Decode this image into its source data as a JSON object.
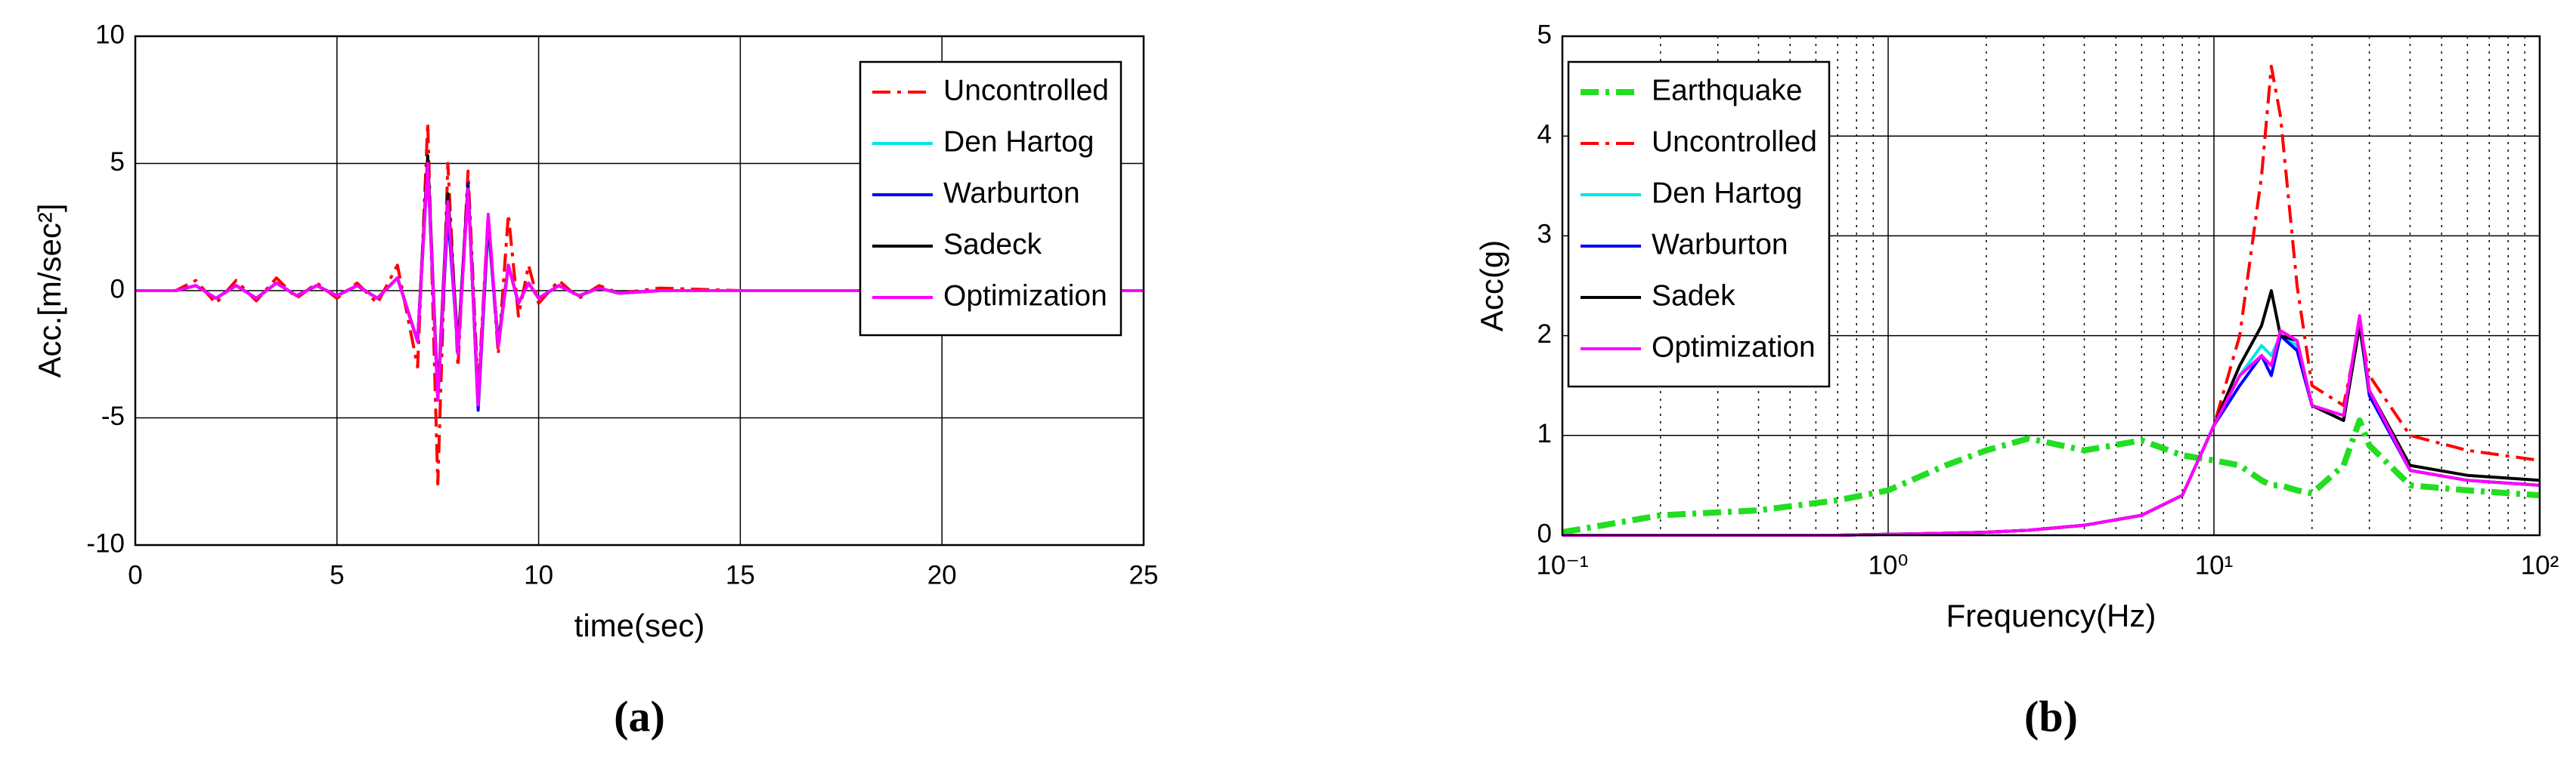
{
  "chart_data": [
    {
      "type": "line",
      "xlabel": "time(sec)",
      "ylabel": "Acc.[m/sec²]",
      "caption": "(a)",
      "xlim": [
        0,
        25
      ],
      "ylim": [
        -10,
        10
      ],
      "xticks": [
        0,
        5,
        10,
        15,
        20,
        25
      ],
      "yticks": [
        -10,
        -5,
        0,
        5,
        10
      ],
      "grid": true,
      "legend": "top-right",
      "x": [
        0,
        1,
        1.5,
        2,
        2.5,
        3,
        3.5,
        4,
        4.5,
        5,
        5.5,
        6,
        6.5,
        7,
        7.25,
        7.5,
        7.75,
        8,
        8.25,
        8.5,
        8.75,
        9,
        9.25,
        9.5,
        9.75,
        10,
        10.5,
        11,
        11.5,
        12,
        13,
        15,
        20,
        25
      ],
      "series": [
        {
          "name": "Uncontrolled",
          "color": "#ff0000",
          "style": "dashdot",
          "values": [
            0,
            0,
            0.4,
            -0.5,
            0.4,
            -0.4,
            0.5,
            -0.3,
            0.3,
            -0.3,
            0.3,
            -0.5,
            1,
            -3,
            6.6,
            -7.6,
            5,
            -3,
            4.7,
            -4,
            3,
            -2.5,
            3,
            -1,
            1,
            -0.5,
            0.4,
            -0.3,
            0.2,
            -0.1,
            0.1,
            0,
            0,
            0
          ]
        },
        {
          "name": "Den Hartog",
          "color": "#00e5ee",
          "style": "solid",
          "values": [
            0,
            0,
            0.2,
            -0.3,
            0.2,
            -0.3,
            0.3,
            -0.2,
            0.2,
            -0.2,
            0.2,
            -0.3,
            0.5,
            -2,
            4.8,
            -4.2,
            3.2,
            -2.5,
            4,
            -4.5,
            2.5,
            -2,
            1,
            -0.5,
            0.3,
            -0.3,
            0.2,
            -0.2,
            0.1,
            -0.1,
            0,
            0,
            0,
            0
          ]
        },
        {
          "name": "Warburton",
          "color": "#0000ff",
          "style": "solid",
          "values": [
            0,
            0,
            0.2,
            -0.3,
            0.2,
            -0.3,
            0.3,
            -0.2,
            0.2,
            -0.2,
            0.2,
            -0.3,
            0.5,
            -2,
            5,
            -4.3,
            3,
            -2.3,
            4.2,
            -4.7,
            2.7,
            -2.2,
            1,
            -0.5,
            0.3,
            -0.3,
            0.2,
            -0.2,
            0.1,
            -0.1,
            0,
            0,
            0,
            0
          ]
        },
        {
          "name": "Sadeck",
          "color": "#000000",
          "style": "solid",
          "values": [
            0,
            0,
            0.2,
            -0.3,
            0.2,
            -0.3,
            0.3,
            -0.2,
            0.2,
            -0.2,
            0.2,
            -0.3,
            0.5,
            -2,
            5.3,
            -4.2,
            3.8,
            -2.2,
            4.1,
            -4.4,
            2.8,
            -2.1,
            1,
            -0.5,
            0.3,
            -0.3,
            0.2,
            -0.2,
            0.1,
            -0.1,
            0,
            0,
            0,
            0
          ]
        },
        {
          "name": "Optimization",
          "color": "#ff00ff",
          "style": "solid",
          "values": [
            0,
            0,
            0.2,
            -0.3,
            0.2,
            -0.3,
            0.3,
            -0.2,
            0.2,
            -0.2,
            0.2,
            -0.3,
            0.5,
            -2,
            5,
            -4.3,
            3.5,
            -2.5,
            4,
            -4.5,
            3,
            -2.2,
            1,
            -0.5,
            0.3,
            -0.3,
            0.2,
            -0.2,
            0.1,
            -0.1,
            0,
            0,
            0,
            0
          ]
        }
      ]
    },
    {
      "type": "line",
      "xlabel": "Frequency(Hz)",
      "ylabel": "Acc(g)",
      "caption": "(b)",
      "xscale": "log",
      "xlim": [
        0.1,
        100
      ],
      "ylim": [
        0,
        5
      ],
      "xticks": [
        {
          "value": 0.1,
          "label": "10⁻¹"
        },
        {
          "value": 1,
          "label": "10⁰"
        },
        {
          "value": 10,
          "label": "10¹"
        },
        {
          "value": 100,
          "label": "10²"
        }
      ],
      "yticks": [
        0,
        1,
        2,
        3,
        4,
        5
      ],
      "grid": true,
      "minor_grid": true,
      "legend": "top-left",
      "x": [
        0.1,
        0.2,
        0.4,
        0.7,
        1,
        1.5,
        2,
        2.7,
        4,
        6,
        8,
        10,
        12,
        14,
        15,
        16,
        18,
        20,
        25,
        28,
        30,
        40,
        60,
        100
      ],
      "series": [
        {
          "name": "Earthquake",
          "color": "#22dd22",
          "style": "dashdot",
          "linewidth": 8,
          "values": [
            0.03,
            0.2,
            0.25,
            0.35,
            0.45,
            0.7,
            0.85,
            0.97,
            0.85,
            0.95,
            0.8,
            0.75,
            0.7,
            0.55,
            0.5,
            0.5,
            0.45,
            0.42,
            0.7,
            1.15,
            0.9,
            0.5,
            0.45,
            0.4
          ]
        },
        {
          "name": "Uncontrolled",
          "color": "#ff0000",
          "style": "dashdot",
          "values": [
            0,
            0,
            0,
            0,
            0.01,
            0.02,
            0.03,
            0.05,
            0.1,
            0.2,
            0.4,
            1.1,
            2.0,
            3.6,
            4.7,
            4.2,
            2.5,
            1.5,
            1.3,
            2.1,
            1.6,
            1.0,
            0.85,
            0.75
          ]
        },
        {
          "name": "Den Hartog",
          "color": "#00e5ee",
          "style": "solid",
          "values": [
            0,
            0,
            0,
            0,
            0.01,
            0.02,
            0.03,
            0.05,
            0.1,
            0.2,
            0.4,
            1.1,
            1.6,
            1.9,
            1.8,
            2.0,
            1.9,
            1.3,
            1.2,
            2.1,
            1.4,
            0.65,
            0.55,
            0.5
          ]
        },
        {
          "name": "Warburton",
          "color": "#0000ff",
          "style": "solid",
          "values": [
            0,
            0,
            0,
            0,
            0.01,
            0.02,
            0.03,
            0.05,
            0.1,
            0.2,
            0.4,
            1.1,
            1.5,
            1.8,
            1.6,
            2.0,
            1.85,
            1.3,
            1.15,
            2.15,
            1.4,
            0.65,
            0.55,
            0.5
          ]
        },
        {
          "name": "Sadek",
          "color": "#000000",
          "style": "solid",
          "values": [
            0,
            0,
            0,
            0,
            0.01,
            0.02,
            0.03,
            0.05,
            0.1,
            0.2,
            0.4,
            1.1,
            1.7,
            2.1,
            2.45,
            2.0,
            1.95,
            1.3,
            1.15,
            2.1,
            1.45,
            0.7,
            0.6,
            0.55
          ]
        },
        {
          "name": "Optimization",
          "color": "#ff00ff",
          "style": "solid",
          "values": [
            0,
            0,
            0,
            0,
            0.01,
            0.02,
            0.03,
            0.05,
            0.1,
            0.2,
            0.4,
            1.1,
            1.6,
            1.8,
            1.7,
            2.05,
            1.95,
            1.3,
            1.2,
            2.2,
            1.45,
            0.65,
            0.55,
            0.5
          ]
        }
      ]
    }
  ]
}
